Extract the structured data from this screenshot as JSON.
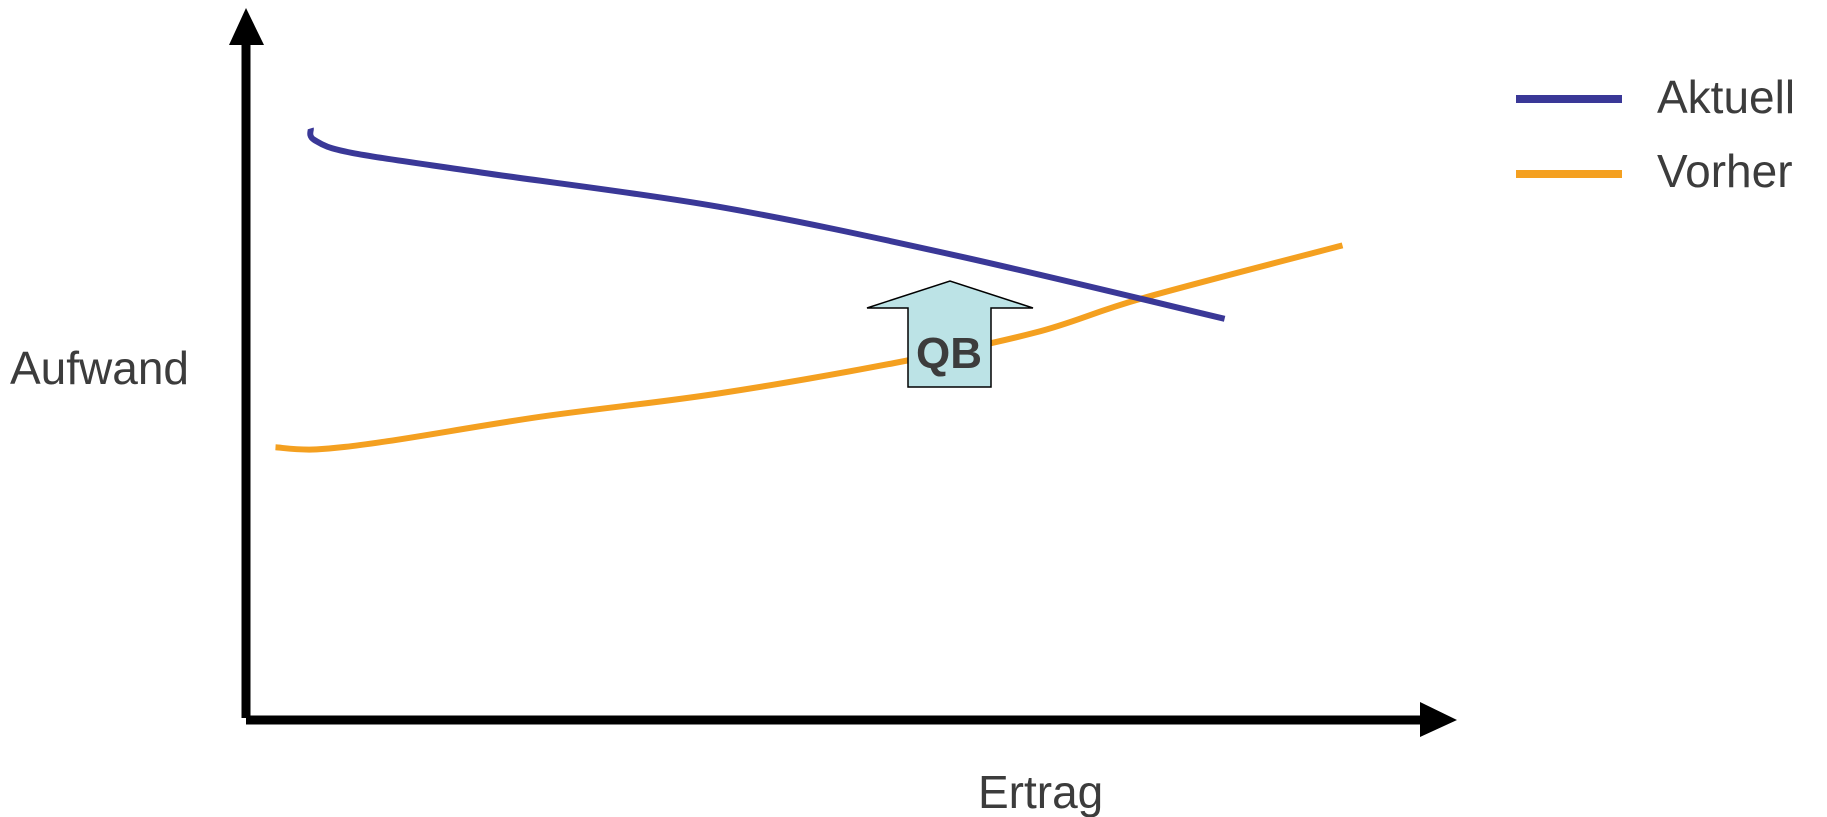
{
  "chart_data": {
    "type": "line",
    "xlabel": "Ertrag",
    "ylabel": "Aufwand",
    "xlim": [
      0,
      100
    ],
    "ylim": [
      0,
      100
    ],
    "grid": false,
    "legend_position": "top-right",
    "ticks": "none",
    "series": [
      {
        "name": "Aktuell",
        "color": "#3a3897",
        "points": [
          [
            5.5,
            87.0
          ],
          [
            5.8,
            85.3
          ],
          [
            9,
            83.4
          ],
          [
            20,
            80.5
          ],
          [
            40,
            75.5
          ],
          [
            60,
            68.4
          ],
          [
            83,
            59.0
          ]
        ]
      },
      {
        "name": "Vorher",
        "color": "#f4a020",
        "points": [
          [
            2.5,
            40.1
          ],
          [
            6,
            39.8
          ],
          [
            12,
            41.0
          ],
          [
            25,
            44.6
          ],
          [
            40,
            48.0
          ],
          [
            55,
            52.5
          ],
          [
            67,
            57.0
          ],
          [
            76,
            62.0
          ],
          [
            93,
            69.8
          ]
        ]
      }
    ],
    "annotations": [
      {
        "type": "up-arrow",
        "label": "QB",
        "fill": "#bce3e6"
      }
    ]
  }
}
